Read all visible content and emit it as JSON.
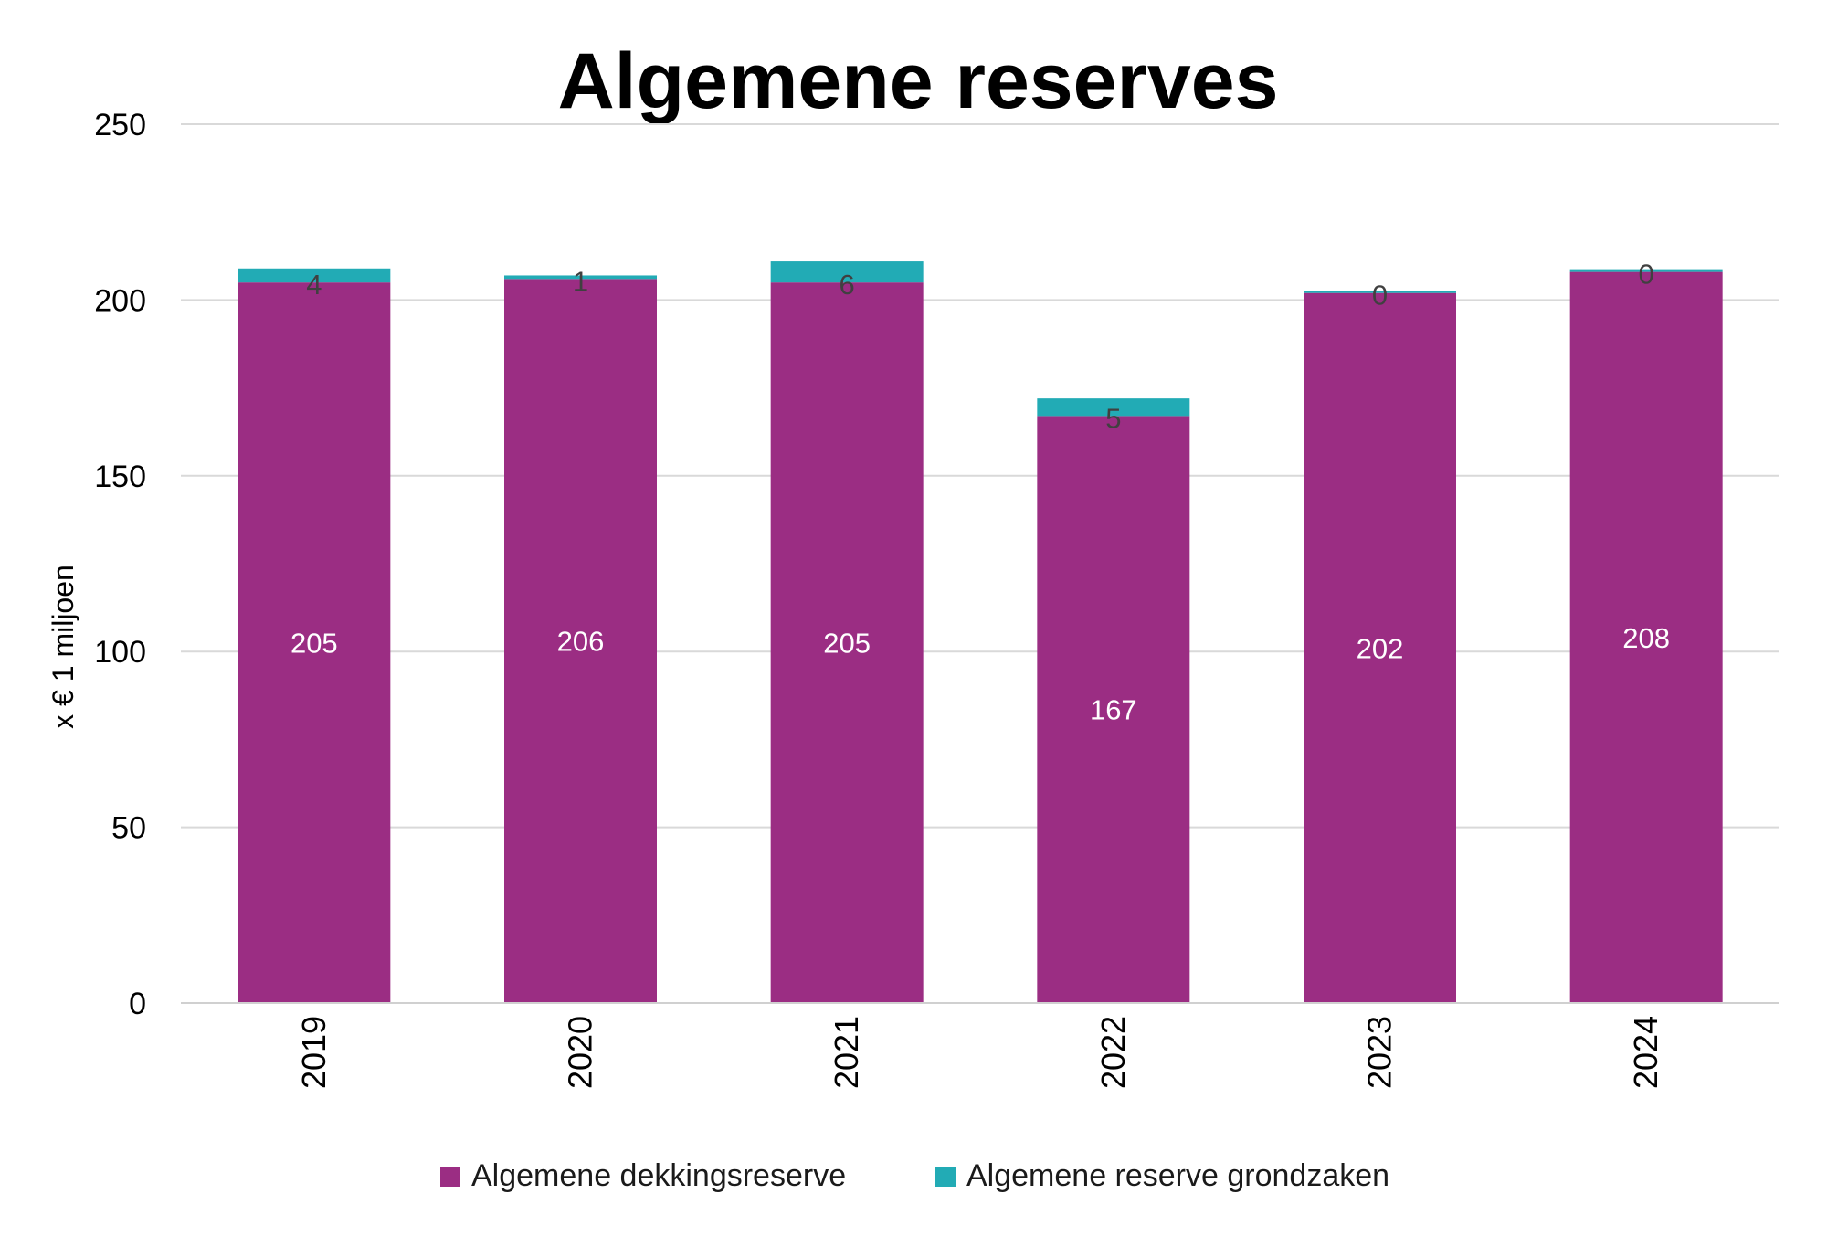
{
  "chart_data": {
    "type": "bar",
    "stacked": true,
    "title": "Algemene reserves",
    "xlabel": "",
    "ylabel": "x  € 1 miljoen",
    "ylim": [
      0,
      250
    ],
    "yticks": [
      0,
      50,
      100,
      150,
      200,
      250
    ],
    "grid": true,
    "legend_position": "bottom",
    "categories": [
      "2019",
      "2020",
      "2021",
      "2022",
      "2023",
      "2024"
    ],
    "series": [
      {
        "name": "Algemene dekkingsreserve",
        "color": "#9b2d83",
        "values": [
          205,
          206,
          205,
          167,
          202,
          208
        ]
      },
      {
        "name": "Algemene reserve grondzaken",
        "color": "#22abb5",
        "values": [
          4,
          1,
          6,
          5,
          0,
          0
        ]
      }
    ]
  }
}
